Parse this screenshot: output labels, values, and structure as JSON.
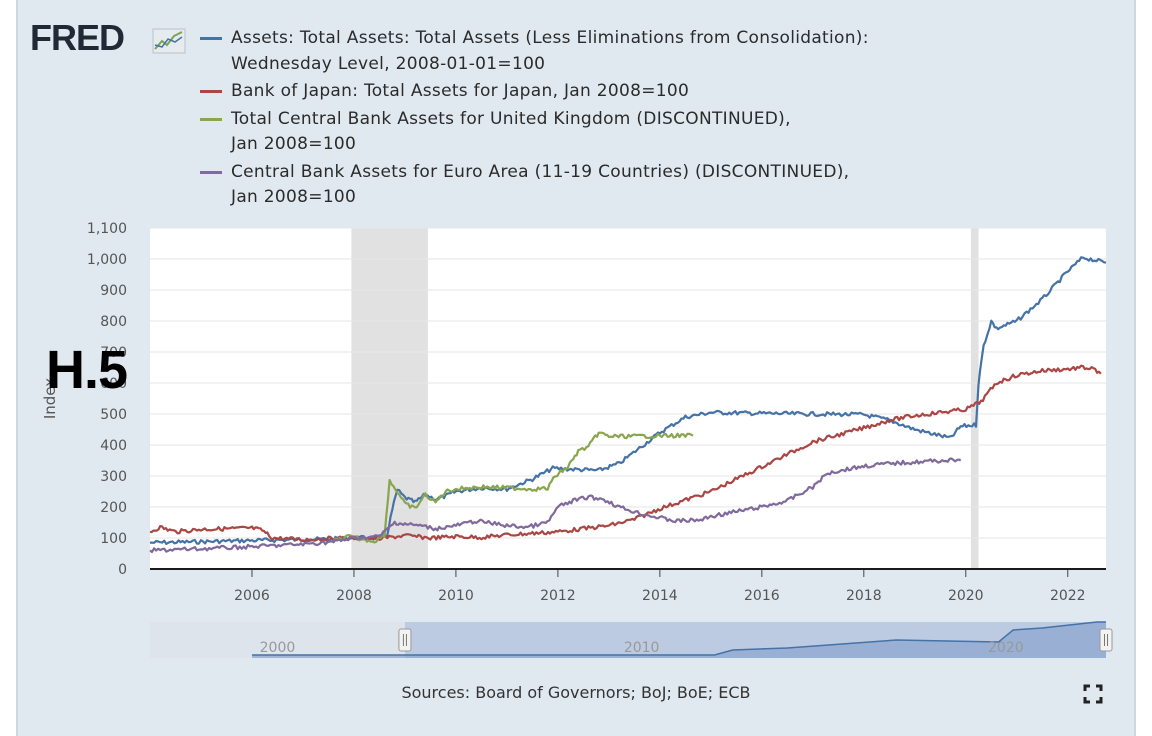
{
  "logo": {
    "text": "FRED"
  },
  "badge": {
    "text": "H.5"
  },
  "sources": "Sources: Board of Governors; BoJ; BoE; ECB",
  "navigator": {
    "tick_labels": [
      "2000",
      "2010",
      "2020"
    ]
  },
  "icons": {
    "logo_mark": "line-chart-icon",
    "expand": "expand-icon"
  },
  "chart_data": {
    "type": "line",
    "ylabel": "Index",
    "xlabel": "",
    "xlim": [
      2004,
      2022.75
    ],
    "ylim": [
      0,
      1100
    ],
    "y_ticks": [
      0,
      100,
      200,
      300,
      400,
      500,
      600,
      700,
      800,
      900,
      1000,
      1100
    ],
    "y_tick_labels": [
      "0",
      "100",
      "200",
      "300",
      "400",
      "500",
      "600",
      "700",
      "800",
      "900",
      "1,000",
      "1,100"
    ],
    "x_ticks": [
      2006,
      2008,
      2010,
      2012,
      2014,
      2016,
      2018,
      2020,
      2022
    ],
    "x_tick_labels": [
      "2006",
      "2008",
      "2010",
      "2012",
      "2014",
      "2016",
      "2018",
      "2020",
      "2022"
    ],
    "grid": true,
    "legend_position": "top",
    "recessions": [
      [
        2007.95,
        2009.45
      ],
      [
        2020.1,
        2020.25
      ]
    ],
    "series": [
      {
        "name": "Assets: Total Assets: Total Assets (Less Eliminations from Consolidation): Wednesday Level, 2008-01-01=100",
        "color": "#4572a7",
        "points": [
          [
            2004,
            85
          ],
          [
            2005,
            88
          ],
          [
            2006,
            92
          ],
          [
            2007,
            95
          ],
          [
            2007.6,
            97
          ],
          [
            2008,
            100
          ],
          [
            2008.5,
            102
          ],
          [
            2008.65,
            110
          ],
          [
            2008.75,
            190
          ],
          [
            2008.85,
            255
          ],
          [
            2009,
            230
          ],
          [
            2009.2,
            215
          ],
          [
            2009.4,
            240
          ],
          [
            2009.6,
            225
          ],
          [
            2009.8,
            235
          ],
          [
            2010,
            250
          ],
          [
            2010.5,
            262
          ],
          [
            2011,
            258
          ],
          [
            2011.5,
            290
          ],
          [
            2011.9,
            325
          ],
          [
            2012.5,
            320
          ],
          [
            2012.8,
            318
          ],
          [
            2013.2,
            340
          ],
          [
            2013.6,
            390
          ],
          [
            2014,
            440
          ],
          [
            2014.5,
            490
          ],
          [
            2015,
            505
          ],
          [
            2016,
            502
          ],
          [
            2017,
            500
          ],
          [
            2018,
            498
          ],
          [
            2018.5,
            480
          ],
          [
            2019,
            450
          ],
          [
            2019.7,
            422
          ],
          [
            2019.9,
            460
          ],
          [
            2020.2,
            465
          ],
          [
            2020.25,
            600
          ],
          [
            2020.35,
            720
          ],
          [
            2020.5,
            800
          ],
          [
            2020.6,
            775
          ],
          [
            2021,
            800
          ],
          [
            2021.5,
            870
          ],
          [
            2022,
            960
          ],
          [
            2022.3,
            1005
          ],
          [
            2022.75,
            988
          ]
        ]
      },
      {
        "name": "Bank of Japan: Total Assets for Japan, Jan 2008=100",
        "color": "#aa4643",
        "points": [
          [
            2004,
            120
          ],
          [
            2004.2,
            135
          ],
          [
            2004.5,
            120
          ],
          [
            2005,
            128
          ],
          [
            2005.5,
            130
          ],
          [
            2006,
            132
          ],
          [
            2006.2,
            125
          ],
          [
            2006.4,
            100
          ],
          [
            2007,
            95
          ],
          [
            2007.5,
            98
          ],
          [
            2008,
            100
          ],
          [
            2008.5,
            98
          ],
          [
            2009,
            108
          ],
          [
            2009.5,
            100
          ],
          [
            2010,
            105
          ],
          [
            2010.5,
            102
          ],
          [
            2011,
            110
          ],
          [
            2011.5,
            115
          ],
          [
            2012,
            120
          ],
          [
            2013,
            140
          ],
          [
            2013.5,
            160
          ],
          [
            2014,
            195
          ],
          [
            2015,
            250
          ],
          [
            2016,
            330
          ],
          [
            2017,
            410
          ],
          [
            2018,
            455
          ],
          [
            2018.5,
            480
          ],
          [
            2019,
            495
          ],
          [
            2019.5,
            505
          ],
          [
            2020,
            515
          ],
          [
            2020.3,
            540
          ],
          [
            2020.6,
            600
          ],
          [
            2021,
            625
          ],
          [
            2021.5,
            640
          ],
          [
            2022,
            645
          ],
          [
            2022.3,
            650
          ],
          [
            2022.5,
            645
          ],
          [
            2022.65,
            630
          ]
        ]
      },
      {
        "name": "Total Central Bank Assets for United Kingdom (DISCONTINUED), Jan 2008=100",
        "color": "#89a54e",
        "points": [
          [
            2007.6,
            90
          ],
          [
            2007.9,
            105
          ],
          [
            2008,
            100
          ],
          [
            2008.4,
            90
          ],
          [
            2008.6,
            110
          ],
          [
            2008.7,
            285
          ],
          [
            2008.85,
            250
          ],
          [
            2009,
            210
          ],
          [
            2009.2,
            195
          ],
          [
            2009.4,
            240
          ],
          [
            2009.6,
            215
          ],
          [
            2009.8,
            250
          ],
          [
            2010,
            258
          ],
          [
            2010.5,
            265
          ],
          [
            2011,
            262
          ],
          [
            2011.5,
            258
          ],
          [
            2011.8,
            260
          ],
          [
            2011.95,
            300
          ],
          [
            2012.2,
            330
          ],
          [
            2012.4,
            380
          ],
          [
            2012.6,
            395
          ],
          [
            2012.8,
            440
          ],
          [
            2013,
            428
          ],
          [
            2013.5,
            428
          ],
          [
            2014,
            430
          ],
          [
            2014.5,
            430
          ],
          [
            2014.65,
            430
          ]
        ]
      },
      {
        "name": "Central Bank Assets for Euro Area (11-19 Countries) (DISCONTINUED), Jan 2008=100",
        "color": "#80699b",
        "points": [
          [
            2004,
            60
          ],
          [
            2005,
            65
          ],
          [
            2006,
            72
          ],
          [
            2007,
            80
          ],
          [
            2007.6,
            88
          ],
          [
            2008,
            100
          ],
          [
            2008.5,
            105
          ],
          [
            2008.8,
            150
          ],
          [
            2009,
            145
          ],
          [
            2009.3,
            140
          ],
          [
            2009.6,
            130
          ],
          [
            2010,
            140
          ],
          [
            2010.4,
            155
          ],
          [
            2011,
            140
          ],
          [
            2011.4,
            135
          ],
          [
            2011.8,
            150
          ],
          [
            2012,
            200
          ],
          [
            2012.3,
            220
          ],
          [
            2012.6,
            232
          ],
          [
            2012.9,
            225
          ],
          [
            2013.2,
            200
          ],
          [
            2013.6,
            180
          ],
          [
            2014,
            165
          ],
          [
            2014.3,
            155
          ],
          [
            2014.8,
            158
          ],
          [
            2015,
            170
          ],
          [
            2016,
            200
          ],
          [
            2016.5,
            220
          ],
          [
            2017,
            265
          ],
          [
            2017.3,
            310
          ],
          [
            2017.6,
            320
          ],
          [
            2018,
            332
          ],
          [
            2018.5,
            340
          ],
          [
            2019,
            345
          ],
          [
            2019.5,
            350
          ],
          [
            2019.9,
            350
          ]
        ]
      }
    ]
  }
}
